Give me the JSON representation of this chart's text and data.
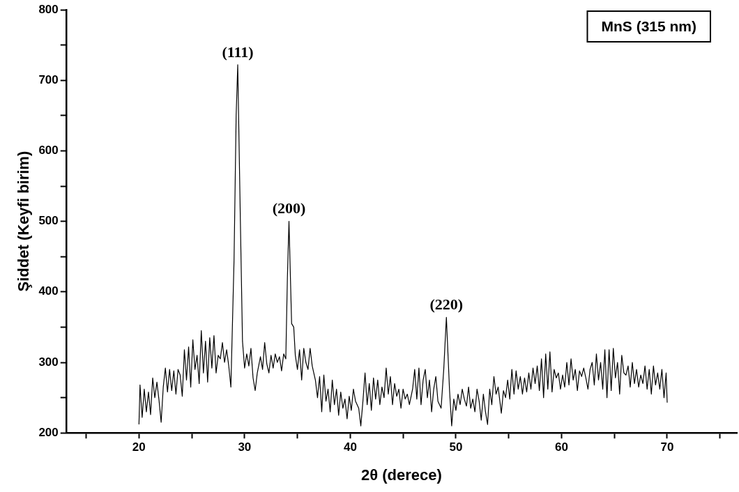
{
  "chart_data": {
    "type": "line",
    "xlabel": "2θ (derece)",
    "ylabel": "Şiddet (Keyfi birim)",
    "xlim": [
      13.1,
      76.6
    ],
    "xticks": [
      {
        "value": 15,
        "label": null
      },
      20,
      {
        "value": 25,
        "label": null
      },
      30,
      {
        "value": 35,
        "label": null
      },
      40,
      {
        "value": 45,
        "label": null
      },
      50,
      {
        "value": 55,
        "label": null
      },
      60,
      {
        "value": 65,
        "label": null
      },
      70,
      {
        "value": 75,
        "label": null
      }
    ],
    "ylim": [
      200,
      800
    ],
    "yticks": [
      200,
      {
        "value": 250,
        "label": null
      },
      300,
      {
        "value": 350,
        "label": null
      },
      400,
      {
        "value": 450,
        "label": null
      },
      500,
      {
        "value": 550,
        "label": null
      },
      600,
      {
        "value": 650,
        "label": null
      },
      700,
      {
        "value": 750,
        "label": null
      },
      800
    ],
    "grid": false,
    "legend": false,
    "marker": "none",
    "line_style": "solid",
    "annotations": [
      "MnS (315 nm)",
      {
        "text": "(111)",
        "x": 29.35,
        "y": 722
      },
      {
        "text": "(200)",
        "x": 34.2,
        "y": 500
      },
      {
        "text": "(220)",
        "x": 49.1,
        "y": 364
      }
    ],
    "series": [
      {
        "color": "#000000",
        "x": [
          20.0,
          20.1,
          20.3,
          20.5,
          20.7,
          20.9,
          21.1,
          21.3,
          21.5,
          21.7,
          21.9,
          22.1,
          22.3,
          22.5,
          22.7,
          22.9,
          23.1,
          23.3,
          23.5,
          23.7,
          23.9,
          24.1,
          24.3,
          24.5,
          24.7,
          24.9,
          25.1,
          25.3,
          25.5,
          25.7,
          25.9,
          26.1,
          26.3,
          26.5,
          26.7,
          26.9,
          27.1,
          27.3,
          27.5,
          27.7,
          27.9,
          28.1,
          28.3,
          28.5,
          28.7,
          29.0,
          29.2,
          29.35,
          29.6,
          29.8,
          30.0,
          30.2,
          30.4,
          30.6,
          30.8,
          31.0,
          31.2,
          31.5,
          31.7,
          31.9,
          32.1,
          32.3,
          32.5,
          32.7,
          32.9,
          33.1,
          33.3,
          33.5,
          33.7,
          33.9,
          34.05,
          34.2,
          34.45,
          34.65,
          34.8,
          35.0,
          35.2,
          35.4,
          35.6,
          35.8,
          36.0,
          36.2,
          36.4,
          36.7,
          36.9,
          37.1,
          37.3,
          37.5,
          37.7,
          37.9,
          38.1,
          38.3,
          38.5,
          38.7,
          38.9,
          39.1,
          39.3,
          39.5,
          39.7,
          39.9,
          40.1,
          40.3,
          40.5,
          40.8,
          41.0,
          41.2,
          41.4,
          41.6,
          41.8,
          42.0,
          42.2,
          42.4,
          42.6,
          42.8,
          43.0,
          43.2,
          43.4,
          43.6,
          43.8,
          44.0,
          44.2,
          44.4,
          44.6,
          44.8,
          45.0,
          45.2,
          45.4,
          45.6,
          45.9,
          46.1,
          46.3,
          46.5,
          46.7,
          46.9,
          47.1,
          47.3,
          47.5,
          47.7,
          47.9,
          48.1,
          48.3,
          48.6,
          48.85,
          49.1,
          49.4,
          49.6,
          49.8,
          50.0,
          50.2,
          50.4,
          50.6,
          50.8,
          51.0,
          51.2,
          51.4,
          51.6,
          51.8,
          52.0,
          52.2,
          52.4,
          52.6,
          52.8,
          53.0,
          53.2,
          53.4,
          53.6,
          53.8,
          54.0,
          54.3,
          54.5,
          54.7,
          54.9,
          55.1,
          55.3,
          55.5,
          55.7,
          55.9,
          56.1,
          56.3,
          56.5,
          56.7,
          56.9,
          57.1,
          57.3,
          57.5,
          57.7,
          57.9,
          58.1,
          58.3,
          58.5,
          58.7,
          58.9,
          59.1,
          59.3,
          59.5,
          59.7,
          59.9,
          60.1,
          60.3,
          60.5,
          60.7,
          60.9,
          61.1,
          61.3,
          61.5,
          61.7,
          61.9,
          62.1,
          62.3,
          62.5,
          62.7,
          62.9,
          63.1,
          63.3,
          63.5,
          63.7,
          63.9,
          64.1,
          64.3,
          64.5,
          64.7,
          64.9,
          65.1,
          65.3,
          65.5,
          65.7,
          65.9,
          66.1,
          66.3,
          66.5,
          66.7,
          66.9,
          67.1,
          67.3,
          67.5,
          67.7,
          67.9,
          68.1,
          68.3,
          68.5,
          68.7,
          68.9,
          69.1,
          69.3,
          69.5,
          69.7,
          69.9,
          70.0
        ],
        "values": [
          212,
          268,
          222,
          262,
          230,
          258,
          226,
          278,
          250,
          272,
          246,
          215,
          265,
          292,
          258,
          290,
          260,
          288,
          255,
          290,
          282,
          252,
          318,
          275,
          322,
          265,
          332,
          290,
          310,
          270,
          345,
          285,
          330,
          272,
          335,
          292,
          338,
          285,
          310,
          305,
          328,
          300,
          318,
          295,
          265,
          445,
          650,
          722,
          500,
          330,
          292,
          312,
          295,
          320,
          278,
          260,
          285,
          308,
          290,
          328,
          298,
          285,
          310,
          292,
          312,
          300,
          308,
          288,
          312,
          305,
          420,
          500,
          355,
          350,
          310,
          290,
          318,
          275,
          320,
          300,
          290,
          320,
          295,
          275,
          250,
          280,
          230,
          282,
          245,
          262,
          230,
          275,
          240,
          262,
          225,
          258,
          235,
          248,
          220,
          252,
          232,
          262,
          245,
          235,
          210,
          245,
          285,
          240,
          270,
          232,
          278,
          248,
          275,
          240,
          265,
          250,
          292,
          255,
          280,
          240,
          270,
          252,
          262,
          235,
          262,
          248,
          255,
          240,
          262,
          290,
          248,
          292,
          240,
          275,
          290,
          250,
          275,
          230,
          262,
          280,
          245,
          235,
          290,
          364,
          260,
          210,
          248,
          232,
          255,
          240,
          262,
          248,
          238,
          265,
          235,
          248,
          230,
          262,
          245,
          218,
          255,
          230,
          212,
          262,
          240,
          280,
          255,
          265,
          228,
          260,
          250,
          275,
          248,
          290,
          255,
          288,
          262,
          280,
          255,
          278,
          258,
          285,
          262,
          292,
          270,
          295,
          260,
          305,
          250,
          312,
          262,
          315,
          258,
          290,
          278,
          285,
          262,
          282,
          265,
          300,
          268,
          305,
          275,
          290,
          260,
          288,
          280,
          292,
          278,
          262,
          290,
          300,
          268,
          312,
          275,
          300,
          262,
          318,
          250,
          318,
          260,
          320,
          278,
          300,
          255,
          310,
          285,
          282,
          295,
          265,
          300,
          270,
          290,
          265,
          282,
          270,
          295,
          262,
          290,
          255,
          295,
          268,
          285,
          262,
          290,
          250,
          285,
          243
        ]
      }
    ]
  }
}
